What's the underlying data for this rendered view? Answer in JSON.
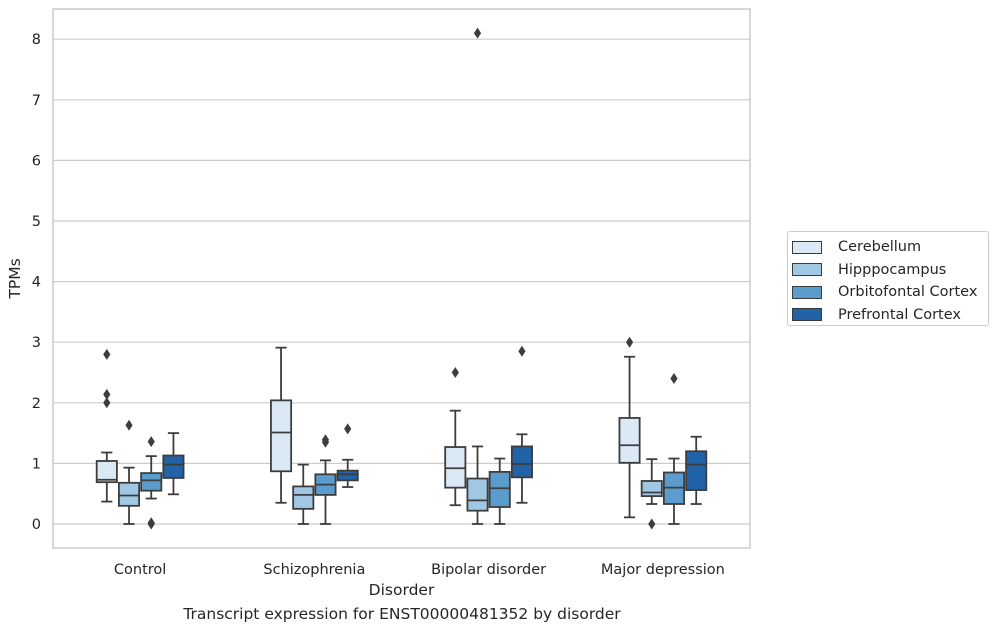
{
  "chart_data": {
    "type": "box",
    "caption": "Transcript expression for ENST00000481352 by disorder",
    "xlabel": "Disorder",
    "ylabel": "TPMs",
    "ylim": [
      -0.4,
      8.5
    ],
    "yticks": [
      0,
      1,
      2,
      3,
      4,
      5,
      6,
      7,
      8
    ],
    "grid": "horizontal",
    "legend_position": "right",
    "categories": [
      "Control",
      "Schizophrenia",
      "Bipolar disorder",
      "Major depression"
    ],
    "series": [
      {
        "name": "Cerebellum",
        "color": "#dbe9f6",
        "boxes": [
          {
            "min": 0.37,
            "q1": 0.69,
            "median": 0.73,
            "q3": 1.04,
            "max": 1.18,
            "outliers": [
              2.0,
              2.14,
              2.8
            ]
          },
          {
            "min": 0.35,
            "q1": 0.87,
            "median": 1.51,
            "q3": 2.04,
            "max": 2.91,
            "outliers": []
          },
          {
            "min": 0.31,
            "q1": 0.6,
            "median": 0.92,
            "q3": 1.27,
            "max": 1.87,
            "outliers": [
              2.5
            ]
          },
          {
            "min": 0.11,
            "q1": 1.01,
            "median": 1.3,
            "q3": 1.75,
            "max": 2.76,
            "outliers": [
              3.0
            ]
          }
        ]
      },
      {
        "name": "Hipppocampus",
        "color": "#a0c7e4",
        "boxes": [
          {
            "min": 0.0,
            "q1": 0.3,
            "median": 0.47,
            "q3": 0.68,
            "max": 0.93,
            "outliers": [
              1.63
            ]
          },
          {
            "min": 0.0,
            "q1": 0.25,
            "median": 0.48,
            "q3": 0.62,
            "max": 0.98,
            "outliers": []
          },
          {
            "min": 0.0,
            "q1": 0.22,
            "median": 0.39,
            "q3": 0.75,
            "max": 1.28,
            "outliers": [
              8.1
            ]
          },
          {
            "min": 0.33,
            "q1": 0.46,
            "median": 0.52,
            "q3": 0.71,
            "max": 1.07,
            "outliers": [
              0.0
            ]
          }
        ]
      },
      {
        "name": "Orbitofontal Cortex",
        "color": "#5a9ccd",
        "boxes": [
          {
            "min": 0.42,
            "q1": 0.55,
            "median": 0.72,
            "q3": 0.84,
            "max": 1.12,
            "outliers": [
              0.0,
              0.02,
              1.36
            ]
          },
          {
            "min": 0.0,
            "q1": 0.48,
            "median": 0.65,
            "q3": 0.82,
            "max": 1.05,
            "outliers": [
              1.35,
              1.39
            ]
          },
          {
            "min": 0.0,
            "q1": 0.28,
            "median": 0.59,
            "q3": 0.86,
            "max": 1.08,
            "outliers": []
          },
          {
            "min": 0.0,
            "q1": 0.33,
            "median": 0.6,
            "q3": 0.85,
            "max": 1.08,
            "outliers": [
              2.4
            ]
          }
        ]
      },
      {
        "name": "Prefrontal Cortex",
        "color": "#2163a6",
        "boxes": [
          {
            "min": 0.49,
            "q1": 0.76,
            "median": 0.98,
            "q3": 1.13,
            "max": 1.5,
            "outliers": []
          },
          {
            "min": 0.61,
            "q1": 0.72,
            "median": 0.82,
            "q3": 0.88,
            "max": 1.06,
            "outliers": [
              1.57
            ]
          },
          {
            "min": 0.35,
            "q1": 0.77,
            "median": 0.99,
            "q3": 1.28,
            "max": 1.48,
            "outliers": [
              2.85
            ]
          },
          {
            "min": 0.33,
            "q1": 0.56,
            "median": 0.98,
            "q3": 1.2,
            "max": 1.44,
            "outliers": []
          }
        ]
      }
    ]
  }
}
